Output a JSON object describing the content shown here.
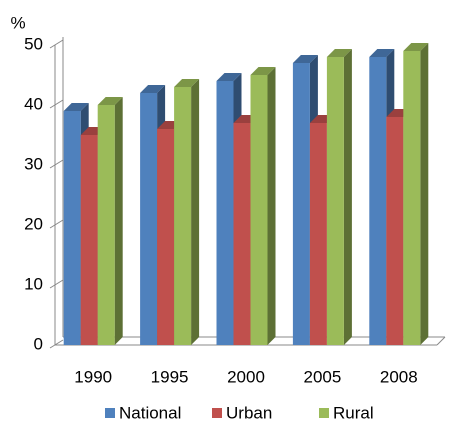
{
  "chart_data": {
    "type": "bar",
    "y_label": "%",
    "categories": [
      "1990",
      "1995",
      "2000",
      "2005",
      "2008"
    ],
    "series": [
      {
        "name": "National",
        "color": "#4f81bd",
        "values": [
          39,
          42,
          44,
          47,
          48
        ]
      },
      {
        "name": "Urban",
        "color": "#c0504d",
        "values": [
          35,
          36,
          37,
          37,
          38
        ]
      },
      {
        "name": "Rural",
        "color": "#9bbb59",
        "values": [
          40,
          43,
          45,
          48,
          49
        ]
      }
    ],
    "ylim": [
      0,
      50
    ],
    "yticks": [
      0,
      10,
      20,
      30,
      40,
      50
    ],
    "legend": "bottom"
  }
}
